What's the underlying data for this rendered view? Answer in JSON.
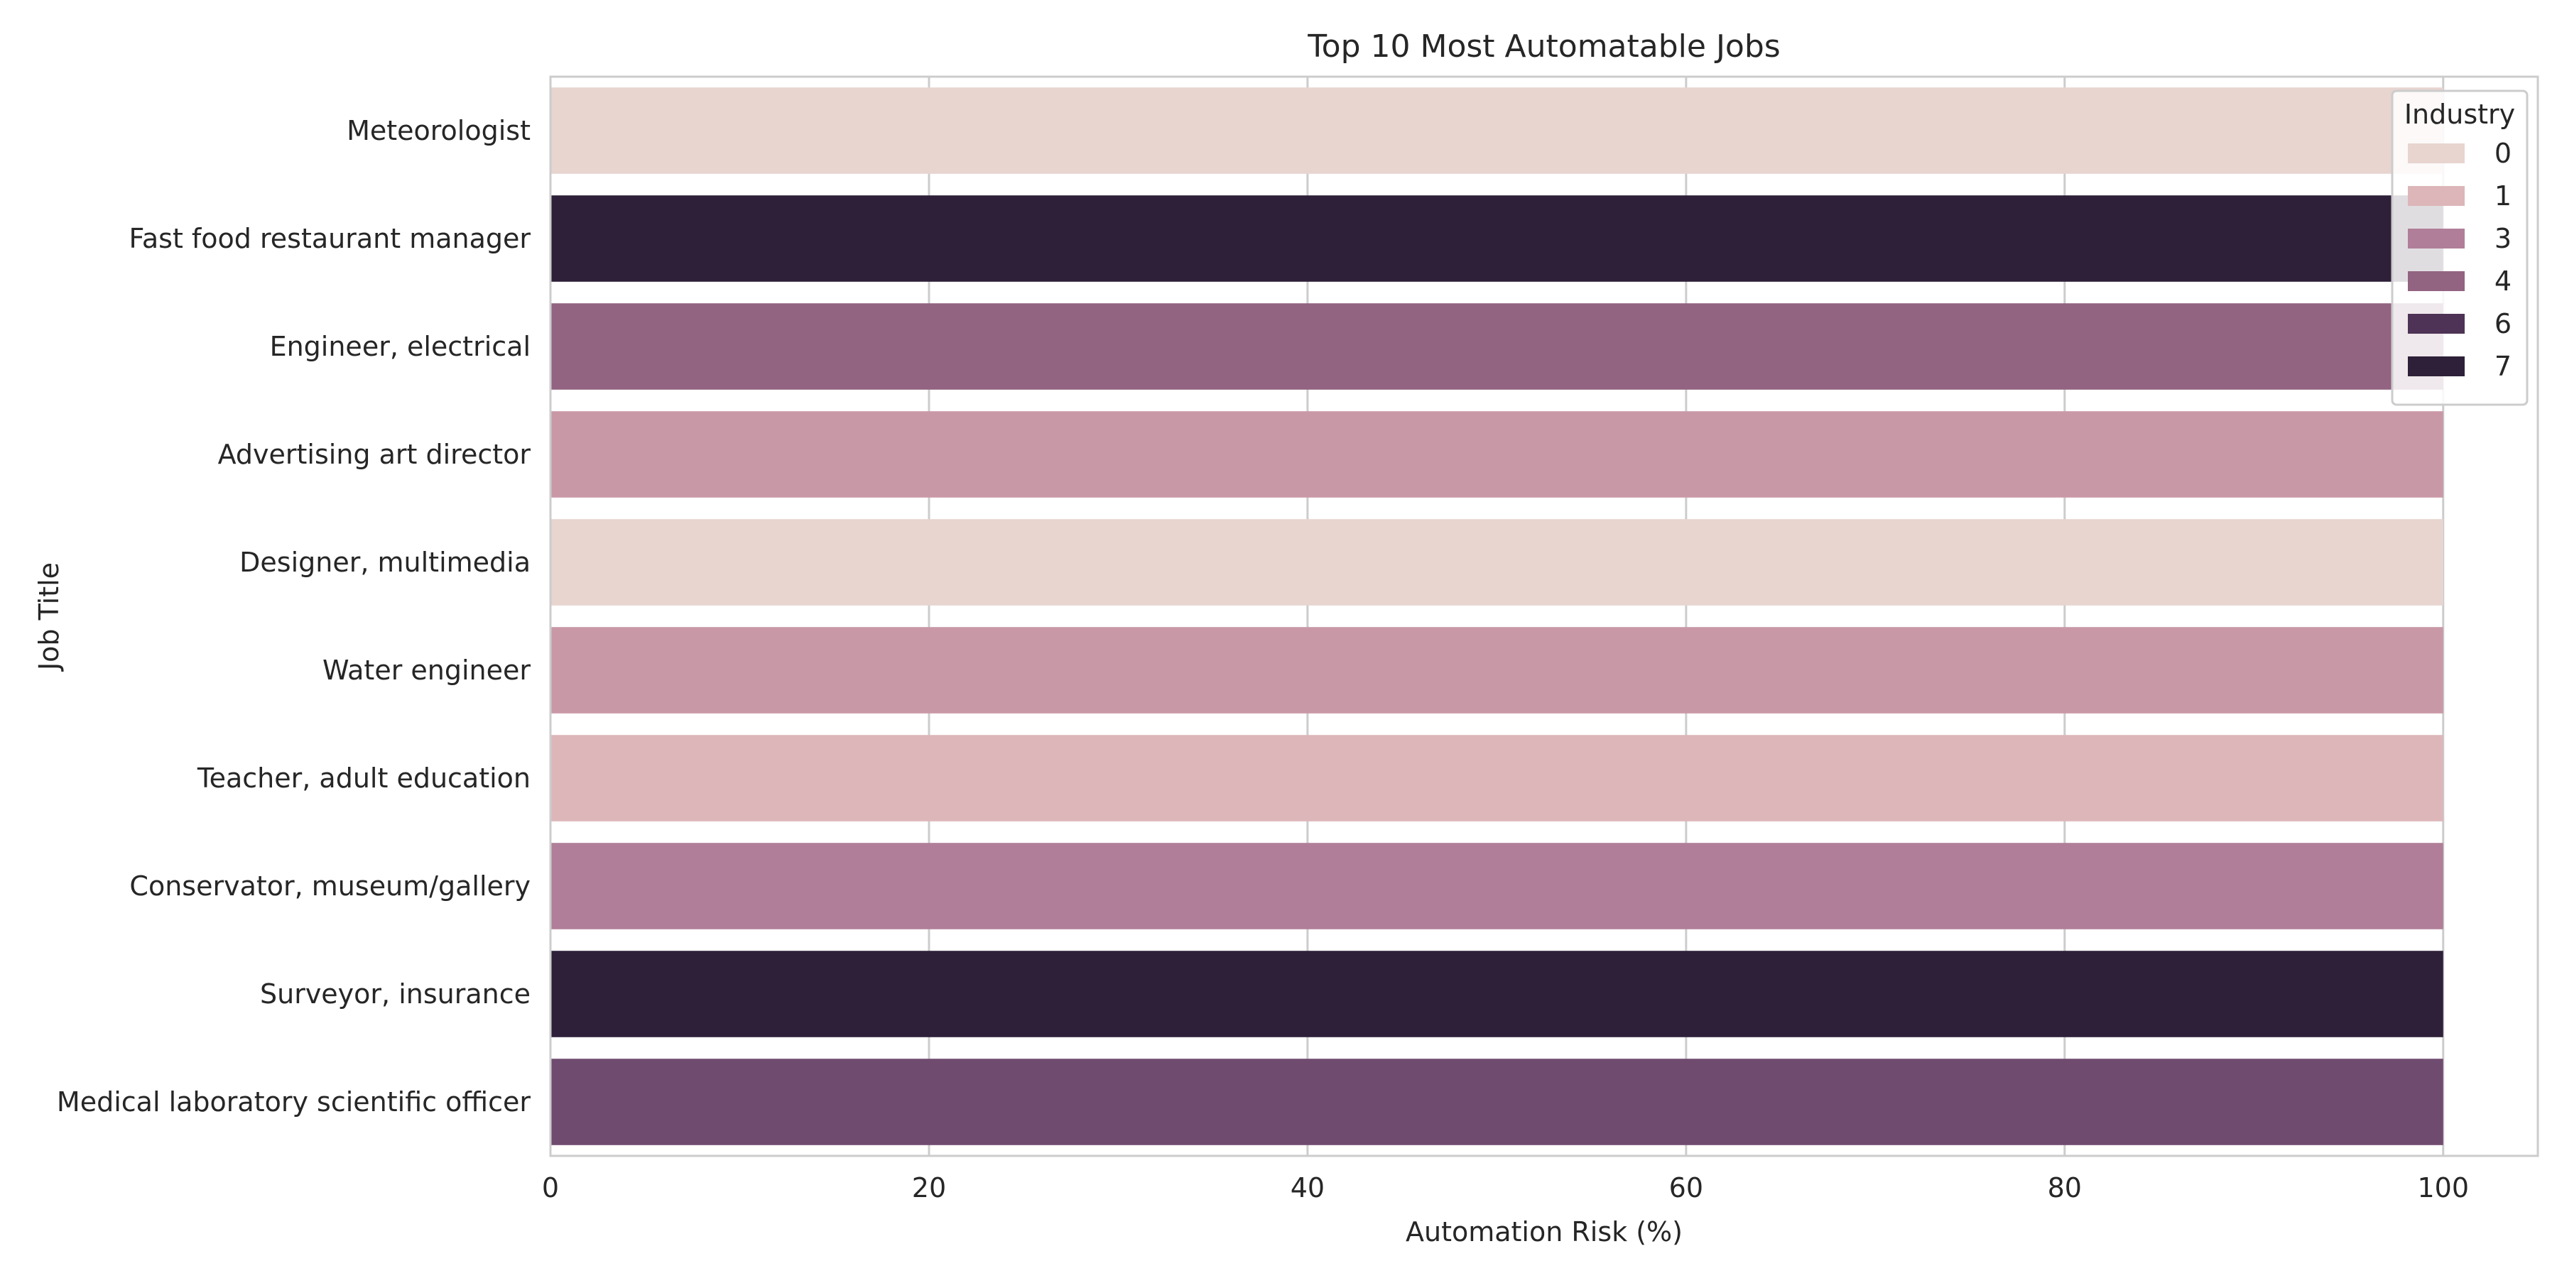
{
  "chart_data": {
    "type": "bar",
    "orientation": "horizontal",
    "title": "Top 10 Most Automatable Jobs",
    "xlabel": "Automation Risk (%)",
    "ylabel": "Job Title",
    "xlim": [
      0,
      105
    ],
    "xticks": [
      0,
      20,
      40,
      60,
      80,
      100
    ],
    "grid": true,
    "categories": [
      "Meteorologist",
      "Fast food restaurant manager",
      "Engineer, electrical",
      "Advertising art director",
      "Designer, multimedia",
      "Water engineer",
      "Teacher, adult education",
      "Conservator, museum/gallery",
      "Surveyor, insurance",
      "Medical laboratory scientific officer"
    ],
    "values": [
      100,
      100,
      100,
      100,
      100,
      100,
      100,
      100,
      100,
      100
    ],
    "hue": [
      0,
      7,
      4,
      2,
      0,
      2,
      1,
      3,
      7,
      5
    ],
    "hue_colors": {
      "0": "#e8d5d0",
      "1": "#dcb6b9",
      "2": "#c998a7",
      "3": "#b07e98",
      "4": "#936382",
      "5": "#704b70",
      "6": "#4e3356",
      "7": "#2e2039"
    },
    "legend": {
      "title": "Industry",
      "placement": "top-right",
      "entries": [
        {
          "label": "0",
          "color": "#e8d5d0"
        },
        {
          "label": "1",
          "color": "#dcb6b9"
        },
        {
          "label": "3",
          "color": "#b07e98"
        },
        {
          "label": "4",
          "color": "#936382"
        },
        {
          "label": "6",
          "color": "#4e3356"
        },
        {
          "label": "7",
          "color": "#2e2039"
        }
      ]
    }
  }
}
